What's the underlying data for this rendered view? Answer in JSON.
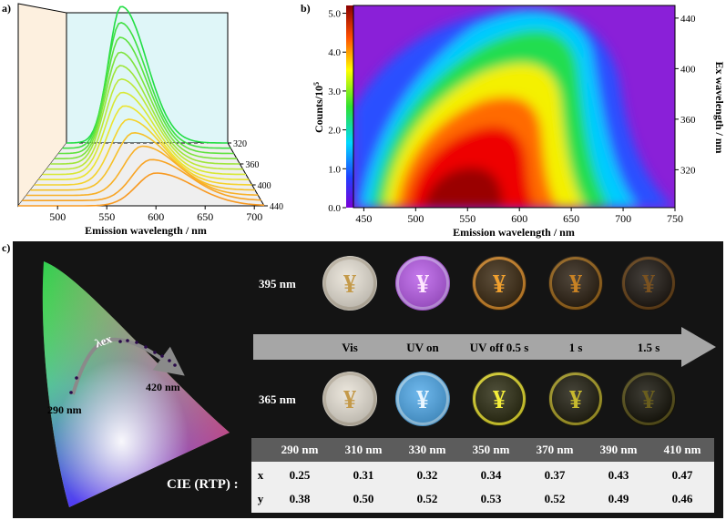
{
  "panels": {
    "a": {
      "label": "a)",
      "xlabel": "Emission wavelength / nm",
      "xticks": [
        "500",
        "550",
        "600",
        "650",
        "700"
      ],
      "depth_ticks": [
        "320",
        "360",
        "400",
        "440"
      ]
    },
    "b": {
      "label": "b)",
      "xlabel": "Emission wavelength / nm",
      "ylabel": "Counts/10",
      "ylabel_sup": "5",
      "y2label": "Ex wavelength / nm",
      "xticks": [
        "450",
        "500",
        "550",
        "600",
        "650",
        "700",
        "750"
      ],
      "yticks": [
        "0.0",
        "1.0",
        "2.0",
        "3.0",
        "4.0",
        "5.0"
      ],
      "y2ticks": [
        "320",
        "360",
        "400",
        "440"
      ]
    },
    "c": {
      "label": "c)",
      "cie": {
        "lambda_label": "λex",
        "start_label": "290 nm",
        "end_label": "420 nm"
      },
      "rows": [
        {
          "label": "395 nm",
          "coin_colors": [
            "#e8e2d6",
            "#b85ce8",
            "#3a2810",
            "#2a1e10",
            "#1c1610"
          ],
          "ring_colors": [
            "#cfc5b3",
            "#d9a5ff",
            "#d68a2a",
            "#a06a1c",
            "#6a4418"
          ],
          "glyph_colors": [
            "#c49a4a",
            "#ffe6ff",
            "#f0a02e",
            "#c88224",
            "#7a5220"
          ]
        },
        {
          "label": "365 nm",
          "coin_colors": [
            "#e8e2d6",
            "#4fa8e8",
            "#2a2a10",
            "#1e1c0e",
            "#141208"
          ],
          "ring_colors": [
            "#cfc5b3",
            "#a6dcff",
            "#e8e030",
            "#b0a428",
            "#5e561c"
          ],
          "glyph_colors": [
            "#c49a4a",
            "#eaf6ff",
            "#f4ee3a",
            "#c8ba2e",
            "#6a5e1e"
          ]
        }
      ],
      "arrow_labels": [
        "Vis",
        "UV on",
        "UV off 0.5 s",
        "1 s",
        "1.5 s"
      ],
      "table": {
        "title": "CIE (RTP) :",
        "headers": [
          "290 nm",
          "310 nm",
          "330 nm",
          "350 nm",
          "370 nm",
          "390 nm",
          "410 nm"
        ],
        "rows": [
          {
            "name": "x",
            "values": [
              "0.25",
              "0.31",
              "0.32",
              "0.34",
              "0.37",
              "0.43",
              "0.47"
            ]
          },
          {
            "name": "y",
            "values": [
              "0.38",
              "0.50",
              "0.52",
              "0.53",
              "0.52",
              "0.49",
              "0.46"
            ]
          }
        ]
      }
    }
  },
  "chart_data": [
    {
      "type": "line",
      "panel": "a",
      "xlabel": "Emission wavelength / nm",
      "xlim": [
        460,
        710
      ],
      "depth_axis": {
        "ticks": [
          320,
          360,
          400,
          440
        ]
      },
      "series": [
        {
          "peak_x": 545,
          "peak_y": 1.0,
          "color": "#22dd44"
        },
        {
          "peak_x": 546,
          "peak_y": 0.92,
          "color": "#3ee040"
        },
        {
          "peak_x": 548,
          "peak_y": 0.85,
          "color": "#5ee23e"
        },
        {
          "peak_x": 550,
          "peak_y": 0.78,
          "color": "#7ee33c"
        },
        {
          "peak_x": 552,
          "peak_y": 0.72,
          "color": "#9ee63a"
        },
        {
          "peak_x": 555,
          "peak_y": 0.66,
          "color": "#bee838"
        },
        {
          "peak_x": 558,
          "peak_y": 0.6,
          "color": "#d8e834"
        },
        {
          "peak_x": 562,
          "peak_y": 0.54,
          "color": "#ece430"
        },
        {
          "peak_x": 568,
          "peak_y": 0.48,
          "color": "#f4d22c"
        },
        {
          "peak_x": 575,
          "peak_y": 0.42,
          "color": "#f6c028"
        },
        {
          "peak_x": 585,
          "peak_y": 0.36,
          "color": "#f8b026"
        },
        {
          "peak_x": 595,
          "peak_y": 0.3,
          "color": "#f8a424"
        },
        {
          "peak_x": 600,
          "peak_y": 0.24,
          "color": "#f89a22"
        }
      ]
    },
    {
      "type": "heatmap",
      "panel": "b",
      "xlabel": "Emission wavelength / nm",
      "ylabel": "Counts/10^5",
      "y2label": "Ex wavelength / nm",
      "xlim": [
        440,
        750
      ],
      "ylim": [
        0,
        5.2
      ],
      "y2lim": [
        290,
        450
      ],
      "colorbar_range": [
        0,
        5.2
      ]
    }
  ]
}
